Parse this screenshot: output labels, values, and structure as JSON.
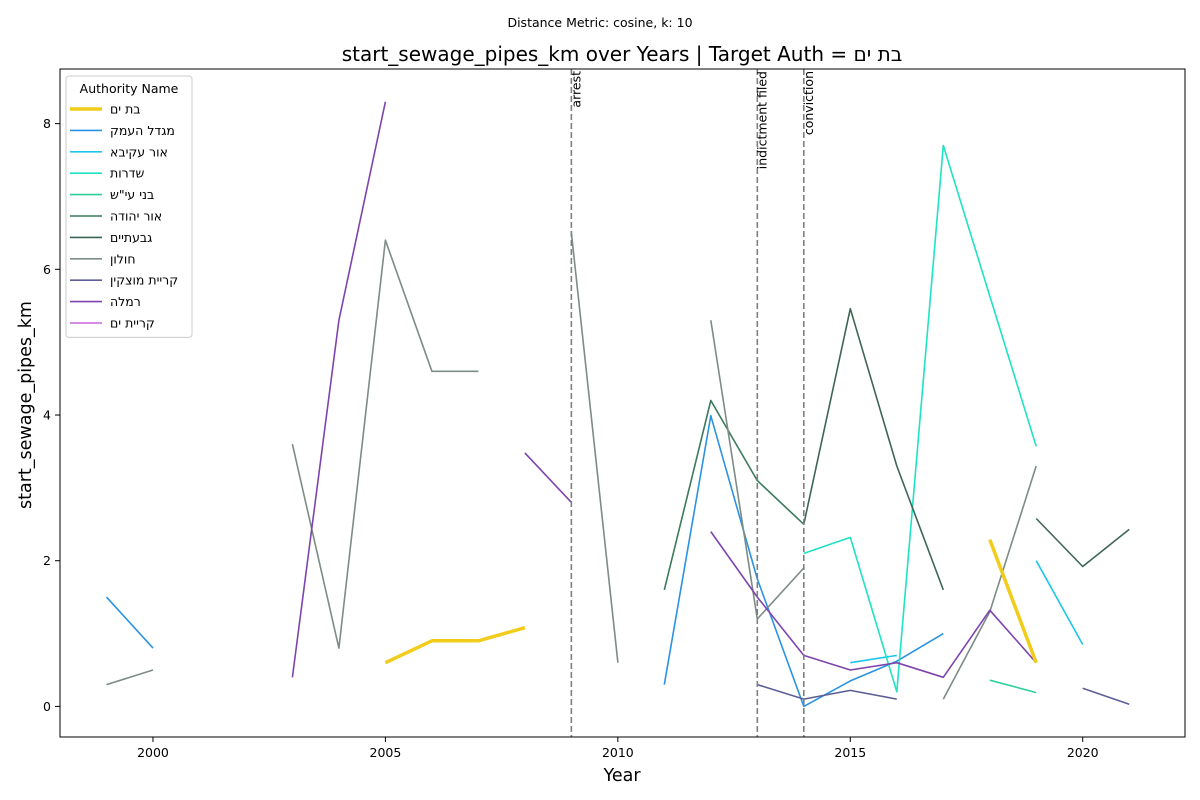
{
  "chart_data": {
    "type": "line",
    "suptitle": "Distance Metric: cosine, k: 10",
    "title": "start_sewage_pipes_km over Years | Target Auth = בת ים",
    "xlabel": "Year",
    "ylabel": "start_sewage_pipes_km",
    "xlim": [
      1998,
      2022.2
    ],
    "ylim": [
      -0.42,
      8.75
    ],
    "xticks": [
      2000,
      2005,
      2010,
      2015,
      2020
    ],
    "yticks": [
      0,
      2,
      4,
      6,
      8
    ],
    "grid": false,
    "legend": {
      "title": "Authority Name",
      "placement": "top-left"
    },
    "events": [
      {
        "x": 2009,
        "label": "arrest"
      },
      {
        "x": 2013,
        "label": "indictment filed"
      },
      {
        "x": 2014,
        "label": "conviction"
      }
    ],
    "series": [
      {
        "name": "בת ים",
        "color": "#f2cc1b",
        "width": 3.5,
        "segments": [
          [
            [
              2005,
              0.6
            ],
            [
              2006,
              0.9
            ],
            [
              2007,
              0.9
            ],
            [
              2008,
              1.08
            ]
          ],
          [
            [
              2018,
              2.29
            ],
            [
              2019,
              0.6
            ]
          ]
        ]
      },
      {
        "name": "מגדל העמק",
        "color": "#2a93e3",
        "width": 1.6,
        "segments": [
          [
            [
              1999,
              1.5
            ],
            [
              2000,
              0.8
            ]
          ],
          [
            [
              2011,
              0.3
            ],
            [
              2012,
              3.99
            ],
            [
              2013,
              1.75
            ],
            [
              2014,
              0.0
            ],
            [
              2015,
              0.35
            ],
            [
              2016,
              0.62
            ],
            [
              2017,
              1.0
            ]
          ]
        ]
      },
      {
        "name": "אור עקיבא",
        "color": "#1ec6ea",
        "width": 1.6,
        "segments": [
          [
            [
              2015,
              0.6
            ],
            [
              2016,
              0.7
            ]
          ],
          [
            [
              2019,
              2.0
            ],
            [
              2020,
              0.85
            ]
          ]
        ]
      },
      {
        "name": "שדרות",
        "color": "#1de3c4",
        "width": 1.6,
        "segments": [
          [
            [
              2014,
              2.1
            ],
            [
              2015,
              2.32
            ],
            [
              2016,
              0.2
            ],
            [
              2017,
              7.7
            ],
            [
              2019,
              3.57
            ]
          ]
        ]
      },
      {
        "name": "בני עי\"ש",
        "color": "#2ecf96",
        "width": 1.6,
        "segments": [
          [
            [
              2018,
              0.36
            ],
            [
              2019,
              0.19
            ]
          ]
        ]
      },
      {
        "name": "אור יהודה",
        "color": "#3b7a5c",
        "width": 1.6,
        "segments": [
          [
            [
              2011,
              1.6
            ],
            [
              2012,
              4.2
            ],
            [
              2013,
              3.1
            ],
            [
              2014,
              2.5
            ]
          ]
        ]
      },
      {
        "name": "גבעתיים",
        "color": "#3e6655",
        "width": 1.6,
        "segments": [
          [
            [
              2014,
              2.5
            ],
            [
              2015,
              5.46
            ],
            [
              2016,
              3.3
            ],
            [
              2017,
              1.6
            ]
          ],
          [
            [
              2019,
              2.58
            ],
            [
              2020,
              1.92
            ],
            [
              2021,
              2.43
            ]
          ]
        ]
      },
      {
        "name": "חולון",
        "color": "#7d8c84",
        "width": 1.6,
        "segments": [
          [
            [
              1999,
              0.3
            ],
            [
              2000,
              0.5
            ]
          ],
          [
            [
              2003,
              3.6
            ],
            [
              2004,
              0.8
            ],
            [
              2005,
              6.4
            ],
            [
              2006,
              4.6
            ],
            [
              2007,
              4.6
            ]
          ],
          [
            [
              2009,
              6.5
            ],
            [
              2010,
              0.6
            ]
          ],
          [
            [
              2012,
              5.3
            ],
            [
              2013,
              1.2
            ],
            [
              2014,
              1.9
            ]
          ],
          [
            [
              2017,
              0.1
            ],
            [
              2018,
              1.3
            ],
            [
              2019,
              3.3
            ]
          ]
        ]
      },
      {
        "name": "קריית מוצקין",
        "color": "#5d5e96",
        "width": 1.6,
        "segments": [
          [
            [
              2013,
              0.3
            ],
            [
              2014,
              0.1
            ],
            [
              2015,
              0.22
            ],
            [
              2016,
              0.1
            ]
          ],
          [
            [
              2020,
              0.25
            ],
            [
              2021,
              0.03
            ]
          ]
        ]
      },
      {
        "name": "רמלה",
        "color": "#7e44ad",
        "width": 1.6,
        "segments": [
          [
            [
              2003,
              0.4
            ],
            [
              2004,
              5.3
            ],
            [
              2005,
              8.3
            ]
          ],
          [
            [
              2008,
              3.48
            ],
            [
              2009,
              2.8
            ]
          ],
          [
            [
              2012,
              2.4
            ],
            [
              2013,
              1.5
            ],
            [
              2014,
              0.7
            ],
            [
              2015,
              0.5
            ],
            [
              2016,
              0.6
            ],
            [
              2017,
              0.4
            ],
            [
              2018,
              1.32
            ],
            [
              2019,
              0.6
            ]
          ]
        ]
      },
      {
        "name": "קריית ים",
        "color": "#cc66dd",
        "width": 1.6,
        "segments": []
      }
    ]
  }
}
